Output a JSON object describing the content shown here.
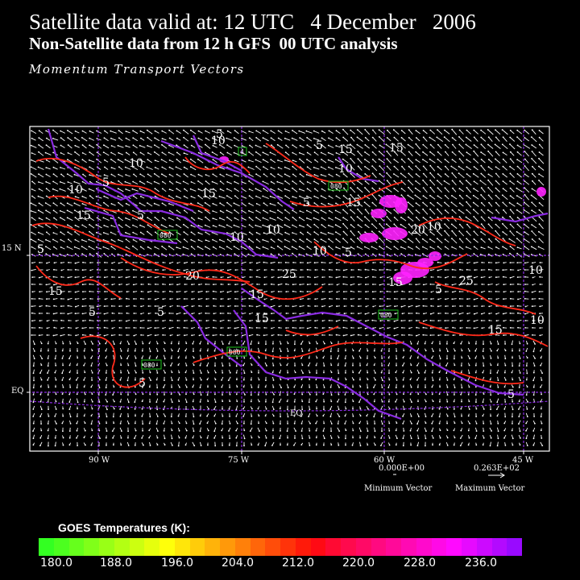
{
  "header": {
    "line1": "Satellite data valid at: 12 UTC   4 December   2006",
    "line2": "Non-Satellite data from 12 h GFS  00 UTC analysis",
    "line3": "Momentum Transport Vectors"
  },
  "map": {
    "lat_labels": [
      "15 N",
      "EQ"
    ],
    "lon_labels": [
      "90 W",
      "75 W",
      "60 W",
      "45 W"
    ],
    "equator_label": "EQ",
    "contour_labels": [
      "10",
      "5",
      "15",
      "15",
      "10",
      "5",
      "10",
      "15",
      "5",
      "15",
      "10",
      "5",
      "10",
      "15",
      "20",
      "10",
      "5",
      "15",
      "20",
      "25",
      "15",
      "15",
      "25",
      "15",
      "5",
      "10",
      "10",
      "5",
      "15",
      "10",
      "5",
      "5",
      "5",
      "5",
      "5",
      "10"
    ],
    "station_boxes": [
      "4",
      "080",
      "080",
      "080",
      "080",
      "080"
    ],
    "colors": {
      "contour": "#ff2a1a",
      "coast": "#8a2be2",
      "vectors": "#ffffff",
      "high_cloud": "#ff22ff",
      "station_box": "#1ec81e"
    }
  },
  "vector_legend": {
    "min_value": "0.000E+00",
    "max_value": "0.263E+02",
    "min_label": "Minimum Vector",
    "max_label": "Maximum Vector"
  },
  "colorbar": {
    "title": "GOES Temperatures (K):",
    "ticks": [
      "180.0",
      "188.0",
      "196.0",
      "204.0",
      "212.0",
      "220.0",
      "228.0",
      "236.0"
    ],
    "colors": [
      "#33ff22",
      "#4cff1f",
      "#66ff1c",
      "#80ff19",
      "#99ff16",
      "#b3ff13",
      "#ccff10",
      "#e6ff0d",
      "#ffff0a",
      "#ffe60a",
      "#ffcc0a",
      "#ffb30a",
      "#ff990a",
      "#ff800a",
      "#ff660a",
      "#ff4d0a",
      "#ff330a",
      "#ff1a0a",
      "#ff0a14",
      "#ff0a33",
      "#ff0a4d",
      "#ff0a66",
      "#ff0a80",
      "#ff0a99",
      "#ff0ab3",
      "#ff0acc",
      "#ff0ae6",
      "#ff0aff",
      "#e60aff",
      "#cc0aff",
      "#b30aff",
      "#990aff"
    ]
  }
}
